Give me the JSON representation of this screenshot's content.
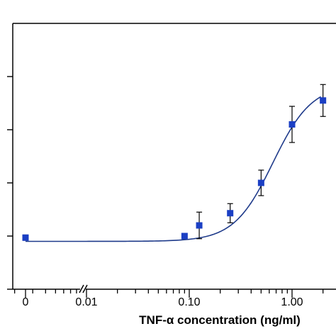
{
  "chart_data": {
    "type": "scatter",
    "xlabel": "TNF-α concentration (ng/ml)",
    "ylabel": "",
    "x_scale": "log",
    "x_axis_break": true,
    "x_ticks": [
      {
        "value": 0,
        "label": "0"
      },
      {
        "value": 0.01,
        "label": "0.01"
      },
      {
        "value": 0.1,
        "label": "0.10"
      },
      {
        "value": 1.0,
        "label": "1.00"
      }
    ],
    "y_ticks_shown": 5,
    "y_tick_labels": [],
    "ylim": [
      0,
      5
    ],
    "grid": false,
    "legend": "none",
    "marker_color": "#1b3fc4",
    "curve_color": "#1e3a8a",
    "series": [
      {
        "points": [
          {
            "x": 0,
            "y": 0.97,
            "err": 0.05
          },
          {
            "x": 0.09,
            "y": 1.0,
            "err": 0.05
          },
          {
            "x": 0.125,
            "y": 1.2,
            "err": 0.25
          },
          {
            "x": 0.25,
            "y": 1.43,
            "err": 0.18
          },
          {
            "x": 0.5,
            "y": 2.0,
            "err": 0.24
          },
          {
            "x": 1.0,
            "y": 3.1,
            "err": 0.34
          },
          {
            "x": 2.0,
            "y": 3.55,
            "err": 0.3
          }
        ]
      }
    ],
    "fit_curve": {
      "bottom": 0.9,
      "top": 3.85,
      "ec50": 0.65,
      "hill": 2.3
    }
  }
}
